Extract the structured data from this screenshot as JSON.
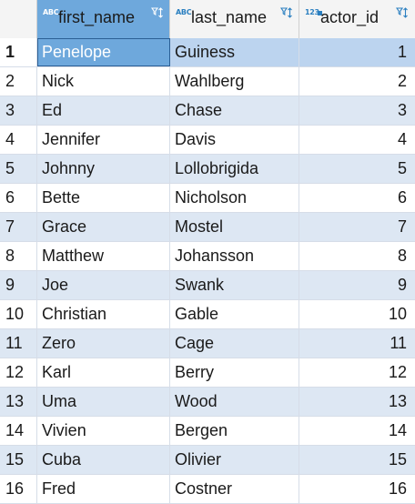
{
  "columns": [
    {
      "name": "first_name",
      "type_badge": "ABC",
      "sort_icon": "filter-sort-icon"
    },
    {
      "name": "last_name",
      "type_badge": "ABC",
      "sort_icon": "filter-sort-icon"
    },
    {
      "name": "actor_id",
      "type_badge": "123",
      "sort_icon": "filter-sort-icon"
    }
  ],
  "rows": [
    {
      "num": "1",
      "first_name": "Penelope",
      "last_name": "Guiness",
      "actor_id": "1"
    },
    {
      "num": "2",
      "first_name": "Nick",
      "last_name": "Wahlberg",
      "actor_id": "2"
    },
    {
      "num": "3",
      "first_name": "Ed",
      "last_name": "Chase",
      "actor_id": "3"
    },
    {
      "num": "4",
      "first_name": "Jennifer",
      "last_name": "Davis",
      "actor_id": "4"
    },
    {
      "num": "5",
      "first_name": "Johnny",
      "last_name": "Lollobrigida",
      "actor_id": "5"
    },
    {
      "num": "6",
      "first_name": "Bette",
      "last_name": "Nicholson",
      "actor_id": "6"
    },
    {
      "num": "7",
      "first_name": "Grace",
      "last_name": "Mostel",
      "actor_id": "7"
    },
    {
      "num": "8",
      "first_name": "Matthew",
      "last_name": "Johansson",
      "actor_id": "8"
    },
    {
      "num": "9",
      "first_name": "Joe",
      "last_name": "Swank",
      "actor_id": "9"
    },
    {
      "num": "10",
      "first_name": "Christian",
      "last_name": "Gable",
      "actor_id": "10"
    },
    {
      "num": "11",
      "first_name": "Zero",
      "last_name": "Cage",
      "actor_id": "11"
    },
    {
      "num": "12",
      "first_name": "Karl",
      "last_name": "Berry",
      "actor_id": "12"
    },
    {
      "num": "13",
      "first_name": "Uma",
      "last_name": "Wood",
      "actor_id": "13"
    },
    {
      "num": "14",
      "first_name": "Vivien",
      "last_name": "Bergen",
      "actor_id": "14"
    },
    {
      "num": "15",
      "first_name": "Cuba",
      "last_name": "Olivier",
      "actor_id": "15"
    },
    {
      "num": "16",
      "first_name": "Fred",
      "last_name": "Costner",
      "actor_id": "16"
    }
  ],
  "selected_row": 0,
  "colors": {
    "accent": "#6ea8dc",
    "row_alt": "#dde7f3",
    "row_selected": "#bcd4ef",
    "icon": "#2a7fc0"
  }
}
